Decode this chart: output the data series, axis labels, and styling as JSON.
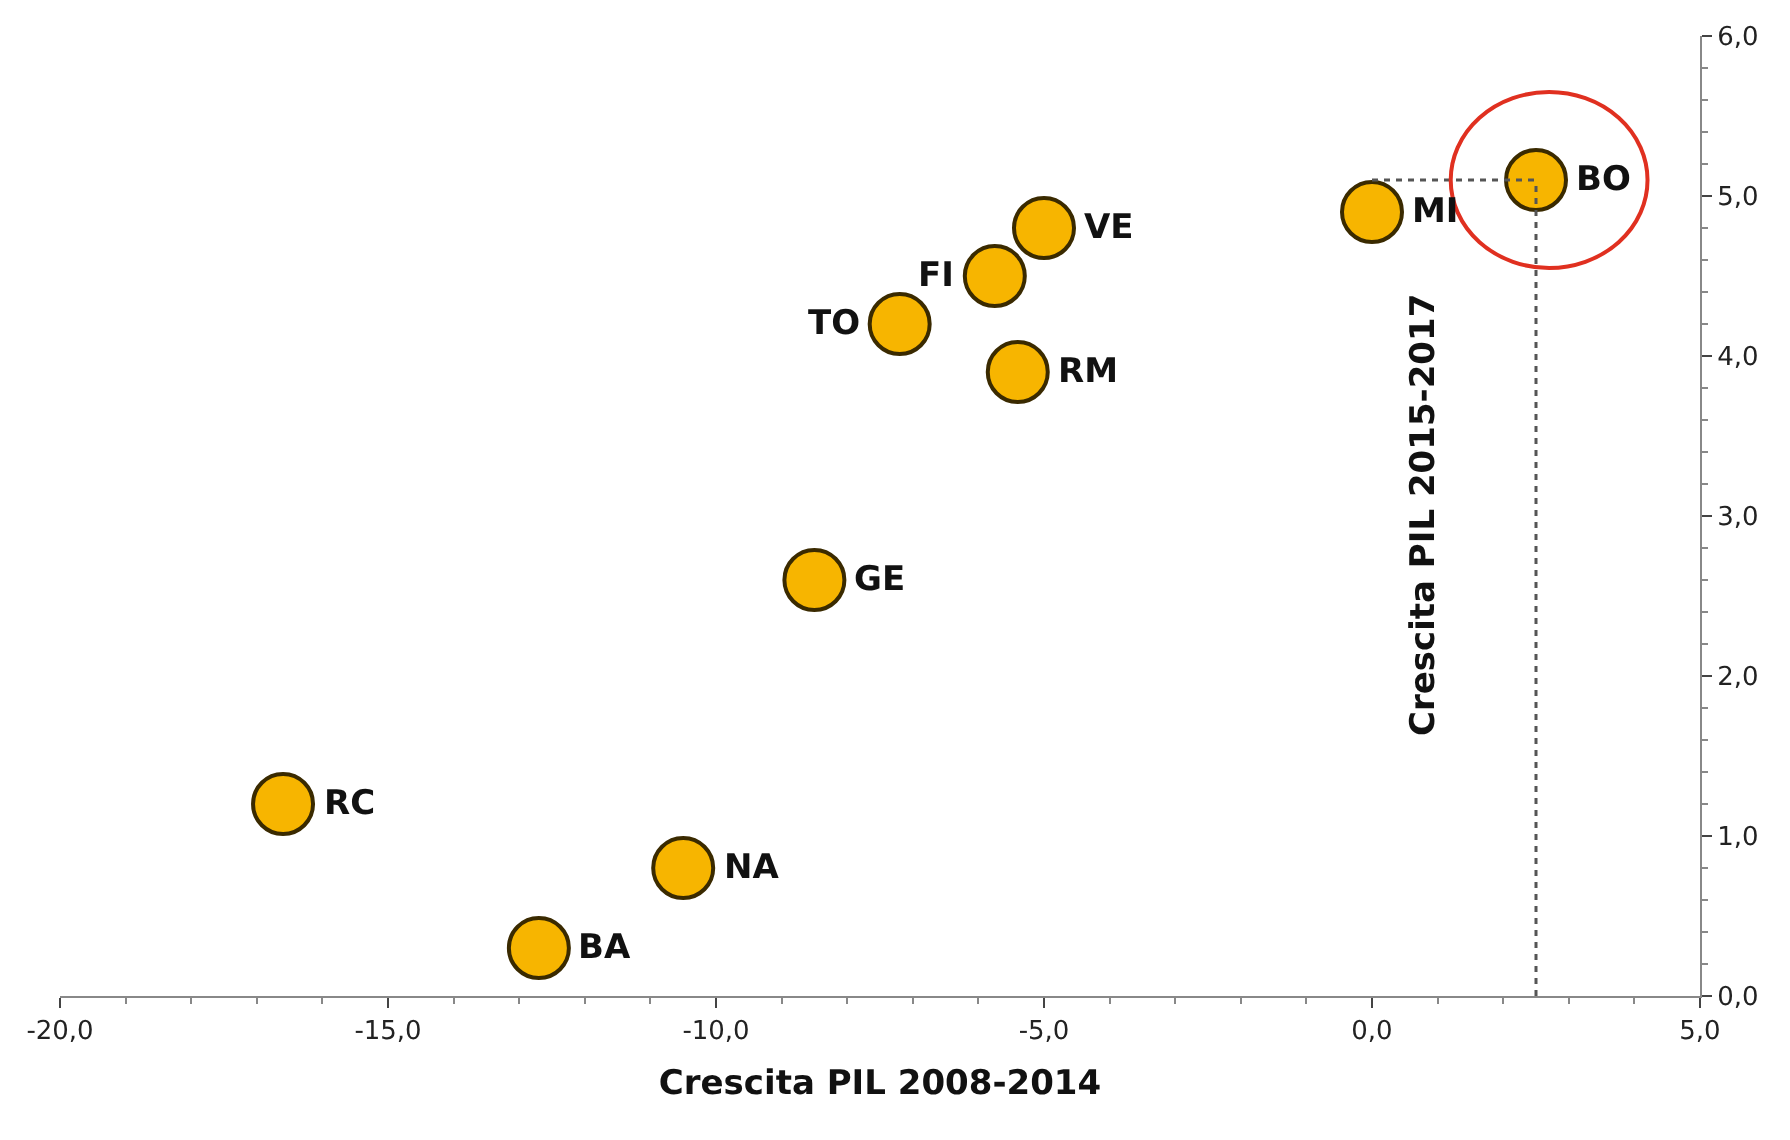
{
  "chart_data": {
    "type": "scatter",
    "xlabel": "Crescita PIL 2008-2014",
    "ylabel": "Crescita PIL 2015-2017",
    "x": [
      -16.6,
      -12.7,
      -10.5,
      -8.5,
      -7.2,
      -5.75,
      -5.4,
      -5.0,
      0.0,
      2.5
    ],
    "series": [
      {
        "color": "#f7b500",
        "values": [
          1.2,
          0.3,
          0.8,
          2.6,
          4.2,
          4.5,
          3.9,
          4.8,
          4.9,
          5.1
        ]
      }
    ],
    "ref_lines": [
      {
        "axis": "x",
        "value": 2.5,
        "color": "#555555",
        "line_style": "dotted"
      },
      {
        "axis": "y",
        "value": 5.1,
        "color": "#555555",
        "line_style": "dotted"
      }
    ],
    "annotations": [
      {
        "text": "RC",
        "x": -16.6,
        "y": 1.2
      },
      {
        "text": "BA",
        "x": -12.7,
        "y": 0.3
      },
      {
        "text": "NA",
        "x": -10.5,
        "y": 0.8
      },
      {
        "text": "GE",
        "x": -8.5,
        "y": 2.6
      },
      {
        "text": "TO",
        "x": -7.2,
        "y": 4.2
      },
      {
        "text": "FI",
        "x": -5.75,
        "y": 4.5
      },
      {
        "text": "RM",
        "x": -5.4,
        "y": 3.9
      },
      {
        "text": "VE",
        "x": -5.0,
        "y": 4.8
      },
      {
        "text": "MI",
        "x": 0.0,
        "y": 4.9
      },
      {
        "text": "BO",
        "x": 2.5,
        "y": 5.1
      }
    ],
    "marker": "circle",
    "xlim": [
      -20,
      5
    ],
    "ylim": [
      0,
      6
    ],
    "xticks": [
      {
        "value": -20,
        "label": "-20,0"
      },
      {
        "value": -15,
        "label": "-15,0"
      },
      {
        "value": -10,
        "label": "-10,0"
      },
      {
        "value": -5,
        "label": "-5,0"
      },
      {
        "value": 0,
        "label": "0,0"
      },
      {
        "value": 5,
        "label": "5,0"
      }
    ],
    "yticks": [
      {
        "value": 0,
        "label": "0,0"
      },
      {
        "value": 1,
        "label": "1,0"
      },
      {
        "value": 2,
        "label": "2,0"
      },
      {
        "value": 3,
        "label": "3,0"
      },
      {
        "value": 4,
        "label": "4,0"
      },
      {
        "value": 5,
        "label": "5,0"
      },
      {
        "value": 6,
        "label": "6,0"
      }
    ]
  }
}
